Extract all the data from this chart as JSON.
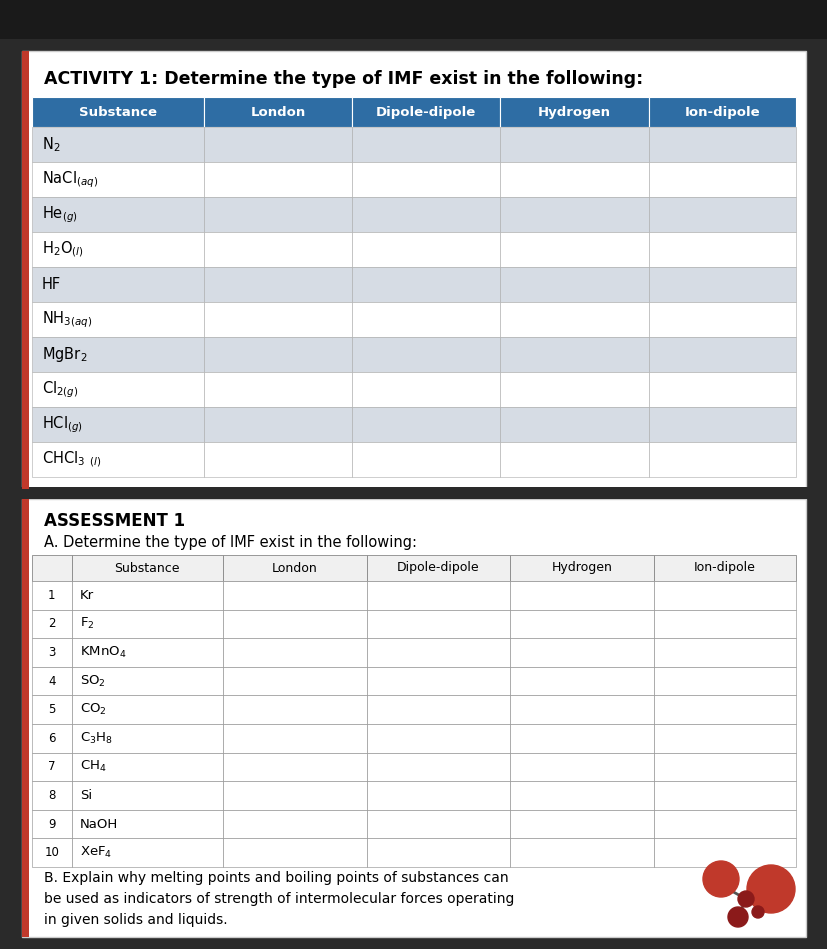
{
  "activity_title": "ACTIVITY 1: Determine the type of IMF exist in the following:",
  "activity_header": [
    "Substance",
    "London",
    "Dipole-dipole",
    "Hydrogen",
    "Ion-dipole"
  ],
  "activity_rows": [
    "N$_2$",
    "NaCl$_{(aq)}$",
    "He$_{(g)}$",
    "H$_2$O$_{(l)}$",
    "HF",
    "NH$_3$$_{(aq)}$",
    "MgBr$_2$",
    "Cl$_{2(g)}$",
    "HCl$_{(g)}$",
    "CHCl$_3$ $_{(l)}$"
  ],
  "activity_row_colors": [
    "#D6DCE4",
    "#FFFFFF",
    "#D6DCE4",
    "#FFFFFF",
    "#D6DCE4",
    "#FFFFFF",
    "#D6DCE4",
    "#FFFFFF",
    "#D6DCE4",
    "#FFFFFF"
  ],
  "assessment_title": "ASSESSMENT 1",
  "assessment_subtitle": "A. Determine the type of IMF exist in the following:",
  "assessment_header": [
    "",
    "Substance",
    "London",
    "Dipole-dipole",
    "Hydrogen",
    "Ion-dipole"
  ],
  "assessment_rows": [
    {
      "num": "1",
      "label": "Kr"
    },
    {
      "num": "2",
      "label": "F$_2$"
    },
    {
      "num": "3",
      "label": "KMnO$_4$"
    },
    {
      "num": "4",
      "label": "SO$_2$"
    },
    {
      "num": "5",
      "label": "CO$_2$"
    },
    {
      "num": "6",
      "label": "C$_3$H$_8$"
    },
    {
      "num": "7",
      "label": "CH$_4$"
    },
    {
      "num": "8",
      "label": "Si"
    },
    {
      "num": "9",
      "label": "NaOH"
    },
    {
      "num": "10",
      "label": "XeF$_4$"
    }
  ],
  "section_b": "B. Explain why melting points and boiling points of substances can\nbe used as indicators of strength of intermolecular forces operating\nin given solids and liquids.",
  "dark_bg": "#2A2A2A",
  "panel_bg": "#FFFFFF",
  "outer_bg": "#3A3A3A",
  "left_bar_color": "#C0392B",
  "header_bg": "#2E6DA4",
  "header_text_color": "#FFFFFF",
  "panel_border": "#CCCCCC",
  "row_alt1": "#D6DCE4",
  "row_alt2": "#FFFFFF",
  "grid_color": "#AAAAAA"
}
